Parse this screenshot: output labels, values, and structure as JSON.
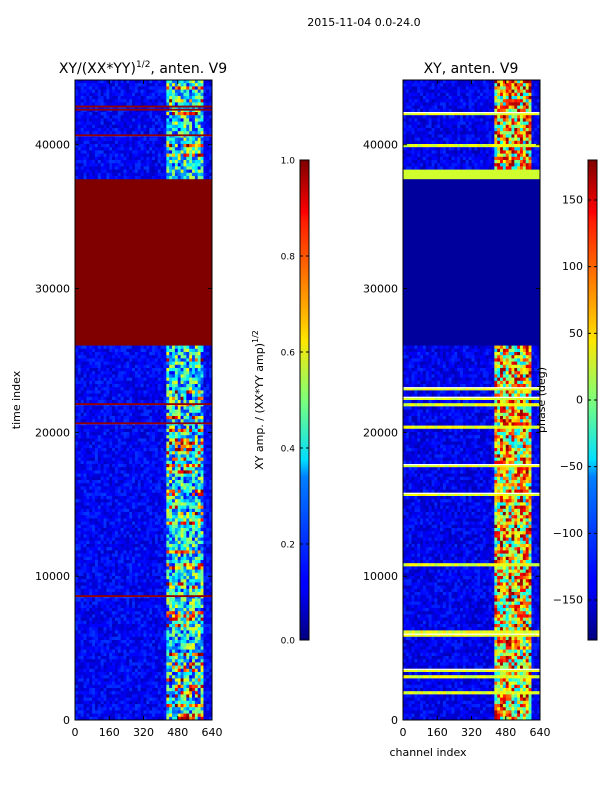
{
  "figure": {
    "suptitle": "2015-11-04 0.0-24.0"
  },
  "chart_data": [
    {
      "type": "heatmap",
      "title_main": "XY/(XX*YY)",
      "title_sup": "1/2",
      "title_tail": ", anten. V9",
      "xlabel": "",
      "ylabel": "time index",
      "xlim": [
        0,
        640
      ],
      "ylim": [
        0,
        44500
      ],
      "xticks": [
        0,
        160,
        320,
        480,
        640
      ],
      "yticks": [
        0,
        10000,
        20000,
        30000,
        40000
      ],
      "colorbar": {
        "label_main": "XY amp. / (XX*YY amp)",
        "label_sup": "1/2",
        "range": [
          0.0,
          1.0
        ],
        "ticks": [
          "0.0",
          "0.2",
          "0.4",
          "0.6",
          "0.8",
          "1.0"
        ],
        "tick_values": [
          0.0,
          0.2,
          0.4,
          0.6,
          0.8,
          1.0
        ]
      },
      "regions": [
        {
          "time_start": 26000,
          "time_end": 37500,
          "channel_start": 0,
          "channel_end": 640,
          "value": 1.0
        },
        {
          "time_start": 0,
          "time_end": 26000,
          "channel_start": 420,
          "channel_end": 600,
          "value": 0.5
        },
        {
          "time_start": 37500,
          "time_end": 44500,
          "channel_start": 420,
          "channel_end": 600,
          "value": 0.5
        }
      ]
    },
    {
      "type": "heatmap",
      "title": "XY, anten. V9",
      "xlabel": "channel index",
      "ylabel": "",
      "xlim": [
        0,
        640
      ],
      "ylim": [
        0,
        44500
      ],
      "xticks": [
        0,
        160,
        320,
        480,
        640
      ],
      "yticks": [
        0,
        10000,
        20000,
        30000,
        40000
      ],
      "colorbar": {
        "label": "phase (deg)",
        "range": [
          -180,
          180
        ],
        "ticks": [
          "−150",
          "−100",
          "−50",
          "0",
          "50",
          "100",
          "150"
        ],
        "tick_values": [
          -150,
          -100,
          -50,
          0,
          50,
          100,
          150
        ]
      },
      "regions": [
        {
          "time_start": 26000,
          "time_end": 37500,
          "channel_start": 0,
          "channel_end": 640,
          "value": -170
        },
        {
          "time_start": 37500,
          "time_end": 38000,
          "channel_start": 0,
          "channel_end": 640,
          "value": 20
        }
      ]
    }
  ]
}
